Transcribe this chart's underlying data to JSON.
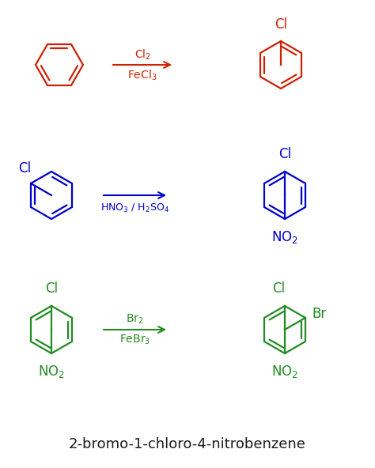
{
  "background_color": "#ffffff",
  "title": "2-bromo-1-chloro-4-nitrobenzene",
  "title_fontsize": 13,
  "title_color": "#1a1a1a",
  "row1_color": "#cc2200",
  "row2_color": "#0000cc",
  "row3_color": "#228B22",
  "row1_arrow_top": "Cl$_2$",
  "row1_arrow_bot": "FeCl$_3$",
  "row2_arrow_bot": "HNO$_3$ / H$_2$SO$_4$",
  "row3_arrow_top": "Br$_2$",
  "row3_arrow_bot": "FeBr$_3$"
}
